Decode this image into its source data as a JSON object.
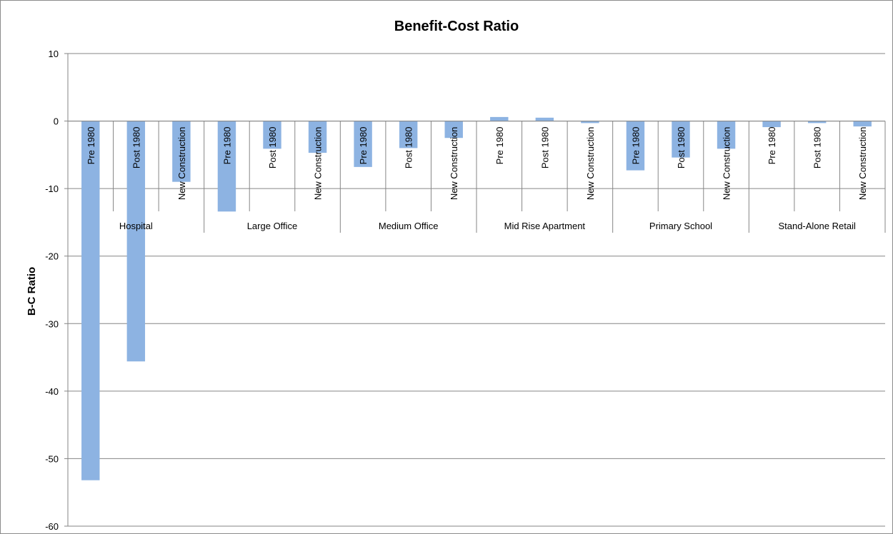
{
  "chart_data": {
    "type": "bar",
    "title": "Benefit-Cost Ratio",
    "xlabel": "",
    "ylabel": "B-C Ratio",
    "ylim": [
      -60,
      10
    ],
    "yticks": [
      10,
      0,
      -10,
      -20,
      -30,
      -40,
      -50,
      -60
    ],
    "grid": true,
    "legend": "none",
    "bar_color": "#8db3e2",
    "groups": [
      {
        "name": "Hospital",
        "categories": [
          "Pre 1980",
          "Post 1980",
          "New Construction"
        ],
        "values": [
          -53.2,
          -35.6,
          -9.0
        ]
      },
      {
        "name": "Large Office",
        "categories": [
          "Pre 1980",
          "Post 1980",
          "New Construction"
        ],
        "values": [
          -13.4,
          -4.1,
          -4.7
        ]
      },
      {
        "name": "Medium Office",
        "categories": [
          "Pre 1980",
          "Post 1980",
          "New Construction"
        ],
        "values": [
          -6.8,
          -4.0,
          -2.5
        ]
      },
      {
        "name": "Mid Rise Apartment",
        "categories": [
          "Pre 1980",
          "Post 1980",
          "New Construction"
        ],
        "values": [
          0.6,
          0.5,
          -0.3
        ]
      },
      {
        "name": "Primary School",
        "categories": [
          "Pre 1980",
          "Post 1980",
          "New Construction"
        ],
        "values": [
          -7.3,
          -5.4,
          -4.1
        ]
      },
      {
        "name": "Stand-Alone Retail",
        "categories": [
          "Pre 1980",
          "Post 1980",
          "New Construction"
        ],
        "values": [
          -0.9,
          -0.3,
          -0.8
        ]
      }
    ]
  }
}
